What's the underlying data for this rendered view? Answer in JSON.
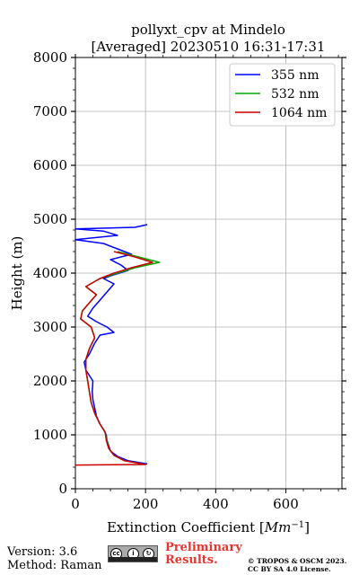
{
  "chart_data": {
    "type": "line",
    "title_line1": "pollyxt_cpv at Mindelo",
    "title_line2": "[Averaged] 20230510 16:31-17:31",
    "xlabel": "Extinction Coefficient [$Mm^{-1}$]",
    "xlabel_text": "Extinction Coefficient [",
    "xlabel_unit": "Mm",
    "xlabel_exp": "−1",
    "xlabel_close": "]",
    "ylabel": "Height (m)",
    "xlim": [
      0,
      760
    ],
    "ylim": [
      0,
      8000
    ],
    "xticks": [
      0,
      200,
      400,
      600
    ],
    "yticks": [
      0,
      1000,
      2000,
      3000,
      4000,
      5000,
      6000,
      7000,
      8000
    ],
    "xtick_labels": [
      "0",
      "200",
      "400",
      "600"
    ],
    "ytick_labels": [
      "0",
      "1000",
      "2000",
      "3000",
      "4000",
      "5000",
      "6000",
      "7000",
      "8000"
    ],
    "grid": true,
    "legend_position": "top-right",
    "series": [
      {
        "name": "355 nm",
        "color": "#0000ff",
        "points": [
          [
            205,
            460
          ],
          [
            150,
            520
          ],
          [
            120,
            600
          ],
          [
            100,
            700
          ],
          [
            95,
            800
          ],
          [
            90,
            900
          ],
          [
            88,
            1000
          ],
          [
            80,
            1100
          ],
          [
            70,
            1200
          ],
          [
            60,
            1350
          ],
          [
            55,
            1500
          ],
          [
            50,
            1650
          ],
          [
            48,
            1800
          ],
          [
            50,
            2000
          ],
          [
            30,
            2200
          ],
          [
            25,
            2350
          ],
          [
            40,
            2500
          ],
          [
            55,
            2700
          ],
          [
            70,
            2850
          ],
          [
            110,
            2900
          ],
          [
            90,
            3000
          ],
          [
            60,
            3100
          ],
          [
            35,
            3200
          ],
          [
            50,
            3350
          ],
          [
            70,
            3500
          ],
          [
            90,
            3650
          ],
          [
            110,
            3800
          ],
          [
            80,
            3900
          ],
          [
            100,
            3950
          ],
          [
            150,
            4050
          ],
          [
            130,
            4150
          ],
          [
            100,
            4250
          ],
          [
            160,
            4350
          ],
          [
            120,
            4450
          ],
          [
            80,
            4550
          ],
          [
            0,
            4620
          ],
          [
            120,
            4700
          ],
          [
            80,
            4780
          ],
          [
            0,
            4820
          ],
          [
            170,
            4850
          ],
          [
            205,
            4900
          ]
        ]
      },
      {
        "name": "532 nm",
        "color": "#00aa00",
        "points": [
          [
            200,
            450
          ],
          [
            140,
            520
          ],
          [
            110,
            620
          ],
          [
            95,
            750
          ],
          [
            90,
            900
          ],
          [
            85,
            1050
          ],
          [
            70,
            1200
          ],
          [
            55,
            1400
          ],
          [
            45,
            1600
          ],
          [
            40,
            1800
          ],
          [
            35,
            2000
          ],
          [
            30,
            2200
          ],
          [
            30,
            2400
          ],
          [
            40,
            2600
          ],
          [
            55,
            2800
          ],
          [
            45,
            3000
          ],
          [
            15,
            3150
          ],
          [
            20,
            3300
          ],
          [
            40,
            3450
          ],
          [
            60,
            3600
          ],
          [
            30,
            3750
          ],
          [
            70,
            3900
          ],
          [
            120,
            4000
          ],
          [
            170,
            4100
          ],
          [
            240,
            4200
          ],
          [
            180,
            4300
          ],
          [
            120,
            4400
          ]
        ]
      },
      {
        "name": "1064 nm",
        "color": "#cc0000",
        "points": [
          [
            0,
            440
          ],
          [
            200,
            450
          ],
          [
            140,
            520
          ],
          [
            110,
            620
          ],
          [
            95,
            750
          ],
          [
            88,
            900
          ],
          [
            85,
            1050
          ],
          [
            70,
            1200
          ],
          [
            55,
            1400
          ],
          [
            45,
            1600
          ],
          [
            40,
            1800
          ],
          [
            35,
            2000
          ],
          [
            30,
            2200
          ],
          [
            30,
            2400
          ],
          [
            40,
            2600
          ],
          [
            55,
            2800
          ],
          [
            45,
            3000
          ],
          [
            15,
            3150
          ],
          [
            20,
            3300
          ],
          [
            40,
            3450
          ],
          [
            60,
            3600
          ],
          [
            30,
            3750
          ],
          [
            70,
            3900
          ],
          [
            110,
            4000
          ],
          [
            160,
            4100
          ],
          [
            220,
            4200
          ],
          [
            170,
            4300
          ],
          [
            110,
            4400
          ]
        ]
      }
    ]
  },
  "footer": {
    "version": "Version: 3.6",
    "method": "Method: Raman",
    "preliminary_line1": "Preliminary",
    "preliminary_line2": "Results.",
    "copyright_line1": "© TROPOS & OSCM 2023.",
    "copyright_line2": "CC BY SA 4.0 License.",
    "cc_badge_icons": [
      "cc-icon",
      "by-icon",
      "sa-icon"
    ]
  }
}
